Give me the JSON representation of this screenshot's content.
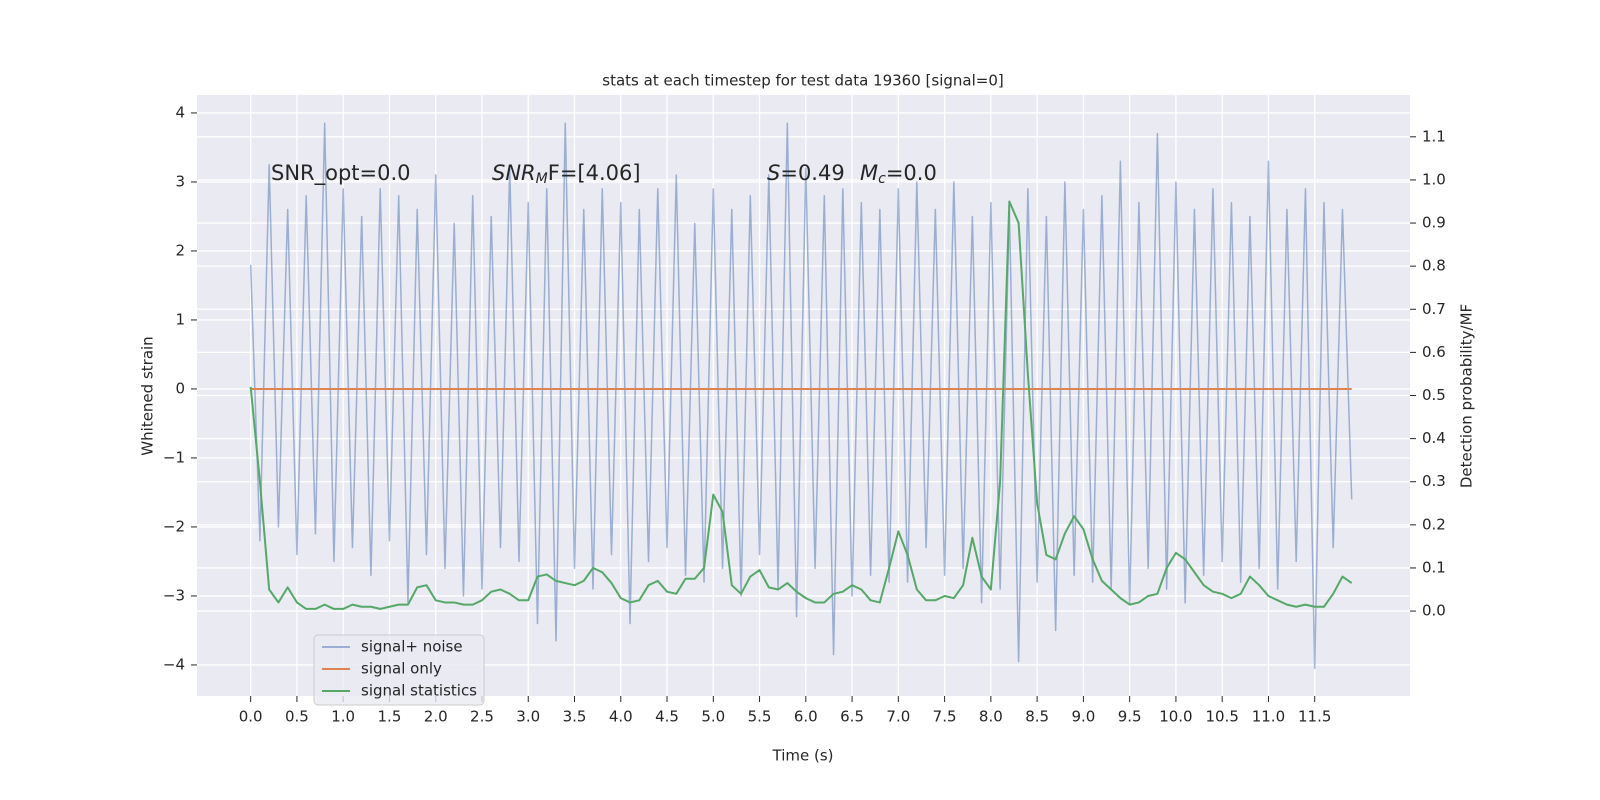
{
  "chart_data": {
    "type": "line",
    "title": "stats at each timestep for test data 19360 [signal=0]",
    "xlabel": "Time (s)",
    "ylabel": "Whitened strain",
    "y2label": "Detection probability/MF",
    "annotations": {
      "snr_opt": "SNR_opt=0.0",
      "snr_mf": {
        "base": "SNR",
        "sub": "M",
        "rest": "F=[4.06]"
      },
      "s": {
        "base": "S",
        "rest": "=0.49"
      },
      "mc": {
        "base": "M",
        "sub": "c",
        "rest": "=0.0"
      }
    },
    "grid": true,
    "legend": "lower left",
    "xlim": [
      -0.58,
      12.53
    ],
    "ylim": [
      -4.45,
      4.26
    ],
    "y2lim": [
      -0.197,
      1.197
    ],
    "xticks": [
      {
        "value": 0,
        "label": "0.0"
      },
      {
        "value": 0.5,
        "label": "0.5"
      },
      {
        "value": 1,
        "label": "1.0"
      },
      {
        "value": 1.5,
        "label": "1.5"
      },
      {
        "value": 2,
        "label": "2.0"
      },
      {
        "value": 2.5,
        "label": "2.5"
      },
      {
        "value": 3,
        "label": "3.0"
      },
      {
        "value": 3.5,
        "label": "3.5"
      },
      {
        "value": 4,
        "label": "4.0"
      },
      {
        "value": 4.5,
        "label": "4.5"
      },
      {
        "value": 5,
        "label": "5.0"
      },
      {
        "value": 5.5,
        "label": "5.5"
      },
      {
        "value": 6,
        "label": "6.0"
      },
      {
        "value": 6.5,
        "label": "6.5"
      },
      {
        "value": 7,
        "label": "7.0"
      },
      {
        "value": 7.5,
        "label": "7.5"
      },
      {
        "value": 8,
        "label": "8.0"
      },
      {
        "value": 8.5,
        "label": "8.5"
      },
      {
        "value": 9,
        "label": "9.0"
      },
      {
        "value": 9.5,
        "label": "9.5"
      },
      {
        "value": 10,
        "label": "10.0"
      },
      {
        "value": 10.5,
        "label": "10.5"
      },
      {
        "value": 11,
        "label": "11.0"
      },
      {
        "value": 11.5,
        "label": "11.5"
      }
    ],
    "yticks": [
      {
        "value": -4,
        "label": "−4"
      },
      {
        "value": -3,
        "label": "−3"
      },
      {
        "value": -2,
        "label": "−2"
      },
      {
        "value": -1,
        "label": "−1"
      },
      0,
      1,
      2,
      3,
      4
    ],
    "y2ticks": [
      {
        "value": 0,
        "label": "0.0"
      },
      {
        "value": 0.1,
        "label": "0.1"
      },
      {
        "value": 0.2,
        "label": "0.2"
      },
      {
        "value": 0.3,
        "label": "0.3"
      },
      {
        "value": 0.4,
        "label": "0.4"
      },
      {
        "value": 0.5,
        "label": "0.5"
      },
      {
        "value": 0.6,
        "label": "0.6"
      },
      {
        "value": 0.7,
        "label": "0.7"
      },
      {
        "value": 0.8,
        "label": "0.8"
      },
      {
        "value": 0.9,
        "label": "0.9"
      },
      {
        "value": 1,
        "label": "1.0"
      },
      {
        "value": 1.1,
        "label": "1.1"
      }
    ],
    "x": [
      0.0,
      0.1,
      0.2,
      0.3,
      0.4,
      0.5,
      0.6,
      0.7,
      0.8,
      0.9,
      1.0,
      1.1,
      1.2,
      1.3,
      1.4,
      1.5,
      1.6,
      1.7,
      1.8,
      1.9,
      2.0,
      2.1,
      2.2,
      2.3,
      2.4,
      2.5,
      2.6,
      2.7,
      2.8,
      2.9,
      3.0,
      3.1,
      3.2,
      3.3,
      3.4,
      3.5,
      3.6,
      3.7,
      3.8,
      3.9,
      4.0,
      4.1,
      4.2,
      4.3,
      4.4,
      4.5,
      4.6,
      4.7,
      4.8,
      4.9,
      5.0,
      5.1,
      5.2,
      5.3,
      5.4,
      5.5,
      5.6,
      5.7,
      5.8,
      5.9,
      6.0,
      6.1,
      6.2,
      6.3,
      6.4,
      6.5,
      6.6,
      6.7,
      6.8,
      6.9,
      7.0,
      7.1,
      7.2,
      7.3,
      7.4,
      7.5,
      7.6,
      7.7,
      7.8,
      7.9,
      8.0,
      8.1,
      8.2,
      8.3,
      8.4,
      8.5,
      8.6,
      8.7,
      8.8,
      8.9,
      9.0,
      9.1,
      9.2,
      9.3,
      9.4,
      9.5,
      9.6,
      9.7,
      9.8,
      9.9,
      10.0,
      10.1,
      10.2,
      10.3,
      10.4,
      10.5,
      10.6,
      10.7,
      10.8,
      10.9,
      11.0,
      11.1,
      11.2,
      11.3,
      11.4,
      11.5,
      11.6,
      11.7,
      11.8,
      11.9
    ],
    "series": [
      {
        "name": "signal+ noise",
        "color": "#4c72b0",
        "opacity": 0.5,
        "values": [
          1.8,
          -2.2,
          3.25,
          -2.0,
          2.6,
          -2.4,
          2.8,
          -2.1,
          3.85,
          -2.5,
          2.9,
          -2.3,
          2.5,
          -2.7,
          2.9,
          -2.2,
          2.8,
          -3.1,
          2.6,
          -2.4,
          3.1,
          -2.6,
          2.4,
          -3.0,
          2.8,
          -2.9,
          2.5,
          -2.3,
          3.2,
          -2.5,
          2.7,
          -3.4,
          2.9,
          -3.65,
          3.85,
          -2.6,
          2.6,
          -2.9,
          2.9,
          -2.4,
          2.7,
          -3.4,
          2.6,
          -2.5,
          2.9,
          -2.3,
          3.1,
          -2.7,
          2.4,
          -2.8,
          2.9,
          -2.6,
          2.6,
          -3.0,
          2.8,
          -2.4,
          3.1,
          -2.9,
          3.85,
          -3.3,
          3.2,
          -2.6,
          2.8,
          -3.85,
          2.9,
          -3.0,
          2.7,
          -2.7,
          2.6,
          -2.8,
          2.9,
          -2.8,
          3.0,
          -2.3,
          2.6,
          -2.7,
          3.0,
          -2.6,
          2.5,
          -3.1,
          2.7,
          -2.9,
          2.6,
          -3.95,
          2.9,
          -2.8,
          2.5,
          -3.5,
          3.0,
          -2.7,
          2.6,
          -2.8,
          2.8,
          -2.9,
          3.3,
          -3.1,
          2.7,
          -2.6,
          3.7,
          -2.9,
          3.0,
          -3.1,
          2.6,
          -2.7,
          2.9,
          -2.5,
          2.7,
          -2.8,
          2.5,
          -2.6,
          3.3,
          -2.9,
          2.6,
          -2.5,
          2.9,
          -4.05,
          2.7,
          -2.3,
          2.6,
          -1.6
        ]
      },
      {
        "name": "signal only",
        "color": "#dd8452",
        "opacity": 1,
        "values": [
          0,
          0,
          0,
          0,
          0,
          0,
          0,
          0,
          0,
          0,
          0,
          0,
          0,
          0,
          0,
          0,
          0,
          0,
          0,
          0,
          0,
          0,
          0,
          0,
          0,
          0,
          0,
          0,
          0,
          0,
          0,
          0,
          0,
          0,
          0,
          0,
          0,
          0,
          0,
          0,
          0,
          0,
          0,
          0,
          0,
          0,
          0,
          0,
          0,
          0,
          0,
          0,
          0,
          0,
          0,
          0,
          0,
          0,
          0,
          0,
          0,
          0,
          0,
          0,
          0,
          0,
          0,
          0,
          0,
          0,
          0,
          0,
          0,
          0,
          0,
          0,
          0,
          0,
          0,
          0,
          0,
          0,
          0,
          0,
          0,
          0,
          0,
          0,
          0,
          0,
          0,
          0,
          0,
          0,
          0,
          0,
          0,
          0,
          0,
          0,
          0,
          0,
          0,
          0,
          0,
          0,
          0,
          0,
          0,
          0,
          0,
          0,
          0,
          0,
          0,
          0,
          0,
          0,
          0,
          0
        ]
      },
      {
        "name": "signal statistics",
        "color": "#55a868",
        "opacity": 1,
        "axis": "y2",
        "values": [
          0.52,
          0.3,
          0.05,
          0.02,
          0.055,
          0.02,
          0.005,
          0.005,
          0.015,
          0.005,
          0.005,
          0.015,
          0.01,
          0.01,
          0.005,
          0.01,
          0.015,
          0.015,
          0.055,
          0.06,
          0.025,
          0.02,
          0.02,
          0.015,
          0.015,
          0.025,
          0.045,
          0.05,
          0.04,
          0.025,
          0.025,
          0.08,
          0.085,
          0.07,
          0.065,
          0.06,
          0.07,
          0.1,
          0.09,
          0.065,
          0.03,
          0.02,
          0.025,
          0.06,
          0.07,
          0.045,
          0.04,
          0.075,
          0.075,
          0.1,
          0.27,
          0.23,
          0.06,
          0.04,
          0.08,
          0.095,
          0.055,
          0.05,
          0.065,
          0.045,
          0.03,
          0.02,
          0.02,
          0.04,
          0.045,
          0.06,
          0.05,
          0.025,
          0.02,
          0.1,
          0.185,
          0.13,
          0.05,
          0.025,
          0.025,
          0.035,
          0.03,
          0.06,
          0.17,
          0.08,
          0.05,
          0.3,
          0.95,
          0.9,
          0.55,
          0.25,
          0.13,
          0.12,
          0.18,
          0.22,
          0.19,
          0.12,
          0.07,
          0.05,
          0.03,
          0.015,
          0.02,
          0.035,
          0.04,
          0.1,
          0.135,
          0.12,
          0.09,
          0.06,
          0.045,
          0.04,
          0.03,
          0.04,
          0.08,
          0.06,
          0.035,
          0.025,
          0.015,
          0.01,
          0.015,
          0.01,
          0.01,
          0.04,
          0.08,
          0.065
        ]
      }
    ]
  }
}
